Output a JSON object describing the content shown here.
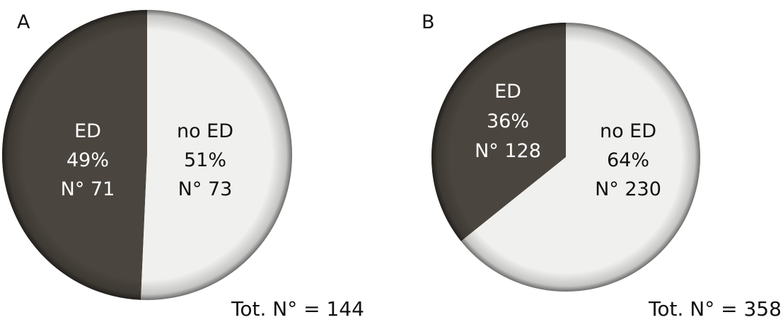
{
  "chart_data": [
    {
      "type": "pie",
      "panel": "A",
      "total_label": "Tot. N° = 144",
      "slices": [
        {
          "name": "ED",
          "percent_label": "49%",
          "count_label": "N° 71",
          "value": 71,
          "percent": 49,
          "color": "#4a453e"
        },
        {
          "name": "no ED",
          "percent_label": "51%",
          "count_label": "N° 73",
          "value": 73,
          "percent": 51,
          "color": "#f0f0ee"
        }
      ]
    },
    {
      "type": "pie",
      "panel": "B",
      "total_label": "Tot. N° = 358",
      "slices": [
        {
          "name": "ED",
          "percent_label": "36%",
          "count_label": "N° 128",
          "value": 128,
          "percent": 36,
          "color": "#4a453e"
        },
        {
          "name": "no ED",
          "percent_label": "64%",
          "count_label": "N° 230",
          "value": 230,
          "percent": 64,
          "color": "#f0f0ee"
        }
      ]
    }
  ],
  "colors": {
    "label_on_dark": "#ffffff",
    "label_on_light": "#111111"
  }
}
